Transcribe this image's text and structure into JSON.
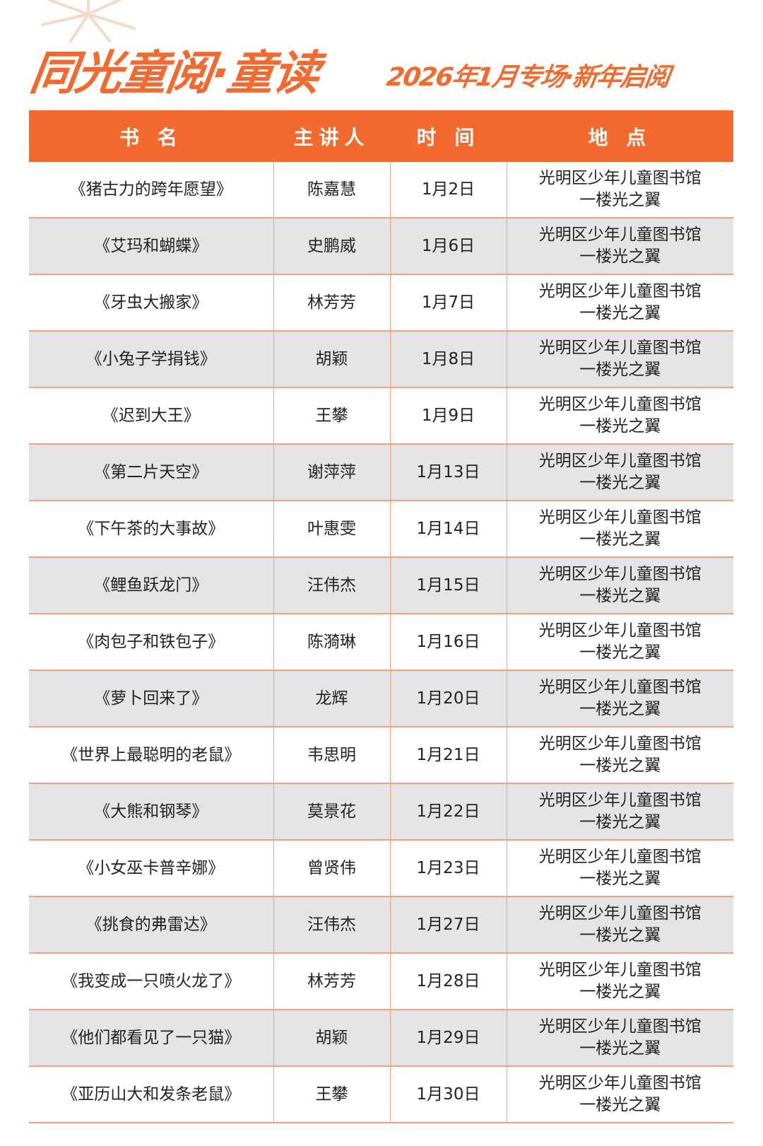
{
  "header": {
    "title": "同光童阅·童读",
    "subtitle": "2026年1月专场·新年启阅",
    "accent_color": "#f26a2e"
  },
  "table": {
    "columns": [
      "书 名",
      "主讲人",
      "时 间",
      "地 点"
    ],
    "rows": [
      {
        "book": "《猪古力的跨年愿望》",
        "speaker": "陈嘉慧",
        "date": "1月2日",
        "place1": "光明区少年儿童图书馆",
        "place2": "一楼光之翼"
      },
      {
        "book": "《艾玛和蝴蝶》",
        "speaker": "史鹏威",
        "date": "1月6日",
        "place1": "光明区少年儿童图书馆",
        "place2": "一楼光之翼"
      },
      {
        "book": "《牙虫大搬家》",
        "speaker": "林芳芳",
        "date": "1月7日",
        "place1": "光明区少年儿童图书馆",
        "place2": "一楼光之翼"
      },
      {
        "book": "《小兔子学捐钱》",
        "speaker": "胡颖",
        "date": "1月8日",
        "place1": "光明区少年儿童图书馆",
        "place2": "一楼光之翼"
      },
      {
        "book": "《迟到大王》",
        "speaker": "王攀",
        "date": "1月9日",
        "place1": "光明区少年儿童图书馆",
        "place2": "一楼光之翼"
      },
      {
        "book": "《第二片天空》",
        "speaker": "谢萍萍",
        "date": "1月13日",
        "place1": "光明区少年儿童图书馆",
        "place2": "一楼光之翼"
      },
      {
        "book": "《下午茶的大事故》",
        "speaker": "叶惠雯",
        "date": "1月14日",
        "place1": "光明区少年儿童图书馆",
        "place2": "一楼光之翼"
      },
      {
        "book": "《鲤鱼跃龙门》",
        "speaker": "汪伟杰",
        "date": "1月15日",
        "place1": "光明区少年儿童图书馆",
        "place2": "一楼光之翼"
      },
      {
        "book": "《肉包子和铁包子》",
        "speaker": "陈漪琳",
        "date": "1月16日",
        "place1": "光明区少年儿童图书馆",
        "place2": "一楼光之翼"
      },
      {
        "book": "《萝卜回来了》",
        "speaker": "龙辉",
        "date": "1月20日",
        "place1": "光明区少年儿童图书馆",
        "place2": "一楼光之翼"
      },
      {
        "book": "《世界上最聪明的老鼠》",
        "speaker": "韦思明",
        "date": "1月21日",
        "place1": "光明区少年儿童图书馆",
        "place2": "一楼光之翼"
      },
      {
        "book": "《大熊和钢琴》",
        "speaker": "莫景花",
        "date": "1月22日",
        "place1": "光明区少年儿童图书馆",
        "place2": "一楼光之翼"
      },
      {
        "book": "《小女巫卡普辛娜》",
        "speaker": "曾贤伟",
        "date": "1月23日",
        "place1": "光明区少年儿童图书馆",
        "place2": "一楼光之翼"
      },
      {
        "book": "《挑食的弗雷达》",
        "speaker": "汪伟杰",
        "date": "1月27日",
        "place1": "光明区少年儿童图书馆",
        "place2": "一楼光之翼"
      },
      {
        "book": "《我变成一只喷火龙了》",
        "speaker": "林芳芳",
        "date": "1月28日",
        "place1": "光明区少年儿童图书馆",
        "place2": "一楼光之翼"
      },
      {
        "book": "《他们都看见了一只猫》",
        "speaker": "胡颖",
        "date": "1月29日",
        "place1": "光明区少年儿童图书馆",
        "place2": "一楼光之翼"
      },
      {
        "book": "《亚历山大和发条老鼠》",
        "speaker": "王攀",
        "date": "1月30日",
        "place1": "光明区少年儿童图书馆",
        "place2": "一楼光之翼"
      }
    ]
  }
}
